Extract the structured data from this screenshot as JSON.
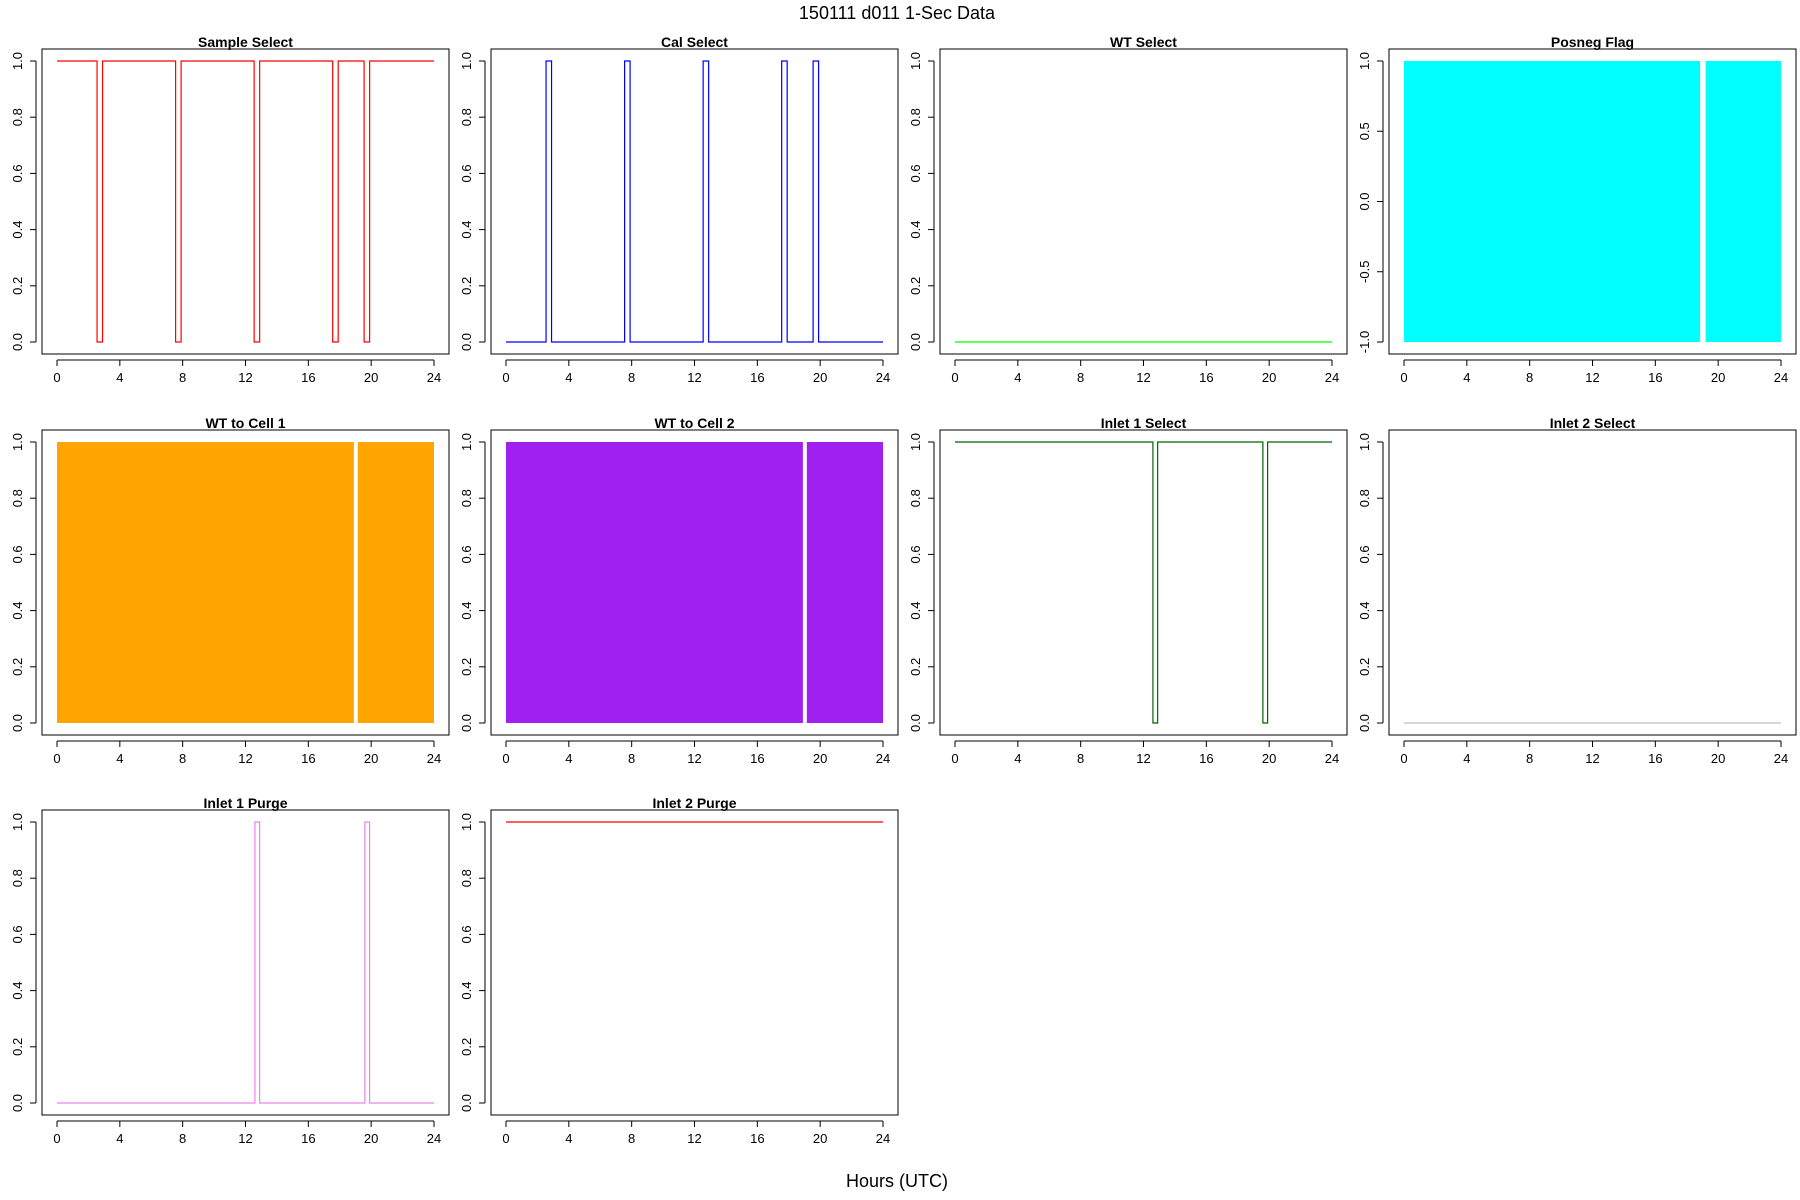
{
  "page": {
    "title": "150111   d011   1-Sec Data",
    "xlabel": "Hours (UTC)"
  },
  "chart_data": [
    {
      "type": "line",
      "title": "Sample Select",
      "color": "#ff0000",
      "xlim": [
        0,
        24
      ],
      "ylim": [
        0,
        1
      ],
      "x_ticks": [
        0,
        4,
        8,
        12,
        16,
        20,
        24
      ],
      "y_ticks": [
        "0.0",
        "0.2",
        "0.4",
        "0.6",
        "0.8",
        "1.0"
      ],
      "x": [
        0,
        2.55,
        2.55,
        2.9,
        2.9,
        7.55,
        7.55,
        7.9,
        7.9,
        12.55,
        12.55,
        12.9,
        12.9,
        17.55,
        17.55,
        17.9,
        17.9,
        19.55,
        19.55,
        19.9,
        19.9,
        24
      ],
      "y": [
        1,
        1,
        0,
        0,
        1,
        1,
        0,
        0,
        1,
        1,
        0,
        0,
        1,
        1,
        0,
        0,
        1,
        1,
        0,
        0,
        1,
        1
      ]
    },
    {
      "type": "line",
      "title": "Cal Select",
      "color": "#0000ff",
      "xlim": [
        0,
        24
      ],
      "ylim": [
        0,
        1
      ],
      "x_ticks": [
        0,
        4,
        8,
        12,
        16,
        20,
        24
      ],
      "y_ticks": [
        "0.0",
        "0.2",
        "0.4",
        "0.6",
        "0.8",
        "1.0"
      ],
      "x": [
        0,
        2.55,
        2.55,
        2.9,
        2.9,
        7.55,
        7.55,
        7.9,
        7.9,
        12.55,
        12.55,
        12.9,
        12.9,
        17.55,
        17.55,
        17.9,
        17.9,
        19.55,
        19.55,
        19.9,
        19.9,
        24
      ],
      "y": [
        0,
        0,
        1,
        1,
        0,
        0,
        1,
        1,
        0,
        0,
        1,
        1,
        0,
        0,
        1,
        1,
        0,
        0,
        1,
        1,
        0,
        0
      ]
    },
    {
      "type": "line",
      "title": "WT Select",
      "color": "#00ff00",
      "xlim": [
        0,
        24
      ],
      "ylim": [
        0,
        1
      ],
      "x_ticks": [
        0,
        4,
        8,
        12,
        16,
        20,
        24
      ],
      "y_ticks": [
        "0.0",
        "0.2",
        "0.4",
        "0.6",
        "0.8",
        "1.0"
      ],
      "x": [
        0,
        24
      ],
      "y": [
        0,
        0
      ]
    },
    {
      "type": "area",
      "title": "Posneg Flag",
      "color": "#00ffff",
      "xlim": [
        0,
        24
      ],
      "ylim": [
        -1,
        1
      ],
      "x_ticks": [
        0,
        4,
        8,
        12,
        16,
        20,
        24
      ],
      "y_ticks": [
        "-1.0",
        "-0.5",
        "0.0",
        "0.5",
        "1.0"
      ],
      "filled_ranges": [
        [
          0,
          18.85
        ],
        [
          19.2,
          24
        ]
      ],
      "fill_between": [
        -1,
        1
      ]
    },
    {
      "type": "area",
      "title": "WT to Cell 1",
      "color": "#ffa500",
      "xlim": [
        0,
        24
      ],
      "ylim": [
        0,
        1
      ],
      "x_ticks": [
        0,
        4,
        8,
        12,
        16,
        20,
        24
      ],
      "y_ticks": [
        "0.0",
        "0.2",
        "0.4",
        "0.6",
        "0.8",
        "1.0"
      ],
      "filled_ranges": [
        [
          0,
          18.9
        ],
        [
          19.15,
          24
        ]
      ],
      "fill_between": [
        0,
        1
      ]
    },
    {
      "type": "area",
      "title": "WT to Cell 2",
      "color": "#a020f0",
      "xlim": [
        0,
        24
      ],
      "ylim": [
        0,
        1
      ],
      "x_ticks": [
        0,
        4,
        8,
        12,
        16,
        20,
        24
      ],
      "y_ticks": [
        "0.0",
        "0.2",
        "0.4",
        "0.6",
        "0.8",
        "1.0"
      ],
      "filled_ranges": [
        [
          0,
          18.9
        ],
        [
          19.15,
          24
        ]
      ],
      "fill_between": [
        0,
        1
      ]
    },
    {
      "type": "line",
      "title": "Inlet 1 Select",
      "color": "#006400",
      "xlim": [
        0,
        24
      ],
      "ylim": [
        0,
        1
      ],
      "x_ticks": [
        0,
        4,
        8,
        12,
        16,
        20,
        24
      ],
      "y_ticks": [
        "0.0",
        "0.2",
        "0.4",
        "0.6",
        "0.8",
        "1.0"
      ],
      "x": [
        0,
        12.6,
        12.6,
        12.9,
        12.9,
        19.6,
        19.6,
        19.9,
        19.9,
        24
      ],
      "y": [
        1,
        1,
        0,
        0,
        1,
        1,
        0,
        0,
        1,
        1
      ]
    },
    {
      "type": "line",
      "title": "Inlet 2 Select",
      "color": "#bebebe",
      "xlim": [
        0,
        24
      ],
      "ylim": [
        0,
        1
      ],
      "x_ticks": [
        0,
        4,
        8,
        12,
        16,
        20,
        24
      ],
      "y_ticks": [
        "0.0",
        "0.2",
        "0.4",
        "0.6",
        "0.8",
        "1.0"
      ],
      "x": [
        0,
        24
      ],
      "y": [
        0,
        0
      ]
    },
    {
      "type": "line",
      "title": "Inlet 1 Purge",
      "color": "#ee82ee",
      "xlim": [
        0,
        24
      ],
      "ylim": [
        0,
        1
      ],
      "x_ticks": [
        0,
        4,
        8,
        12,
        16,
        20,
        24
      ],
      "y_ticks": [
        "0.0",
        "0.2",
        "0.4",
        "0.6",
        "0.8",
        "1.0"
      ],
      "x": [
        0,
        12.6,
        12.6,
        12.9,
        12.9,
        19.6,
        19.6,
        19.9,
        19.9,
        24
      ],
      "y": [
        0,
        0,
        1,
        1,
        0,
        0,
        1,
        1,
        0,
        0
      ]
    },
    {
      "type": "line",
      "title": "Inlet 2 Purge",
      "color": "#ff0000",
      "xlim": [
        0,
        24
      ],
      "ylim": [
        0,
        1
      ],
      "x_ticks": [
        0,
        4,
        8,
        12,
        16,
        20,
        24
      ],
      "y_ticks": [
        "0.0",
        "0.2",
        "0.4",
        "0.6",
        "0.8",
        "1.0"
      ],
      "x": [
        0,
        24
      ],
      "y": [
        1,
        1
      ]
    }
  ]
}
